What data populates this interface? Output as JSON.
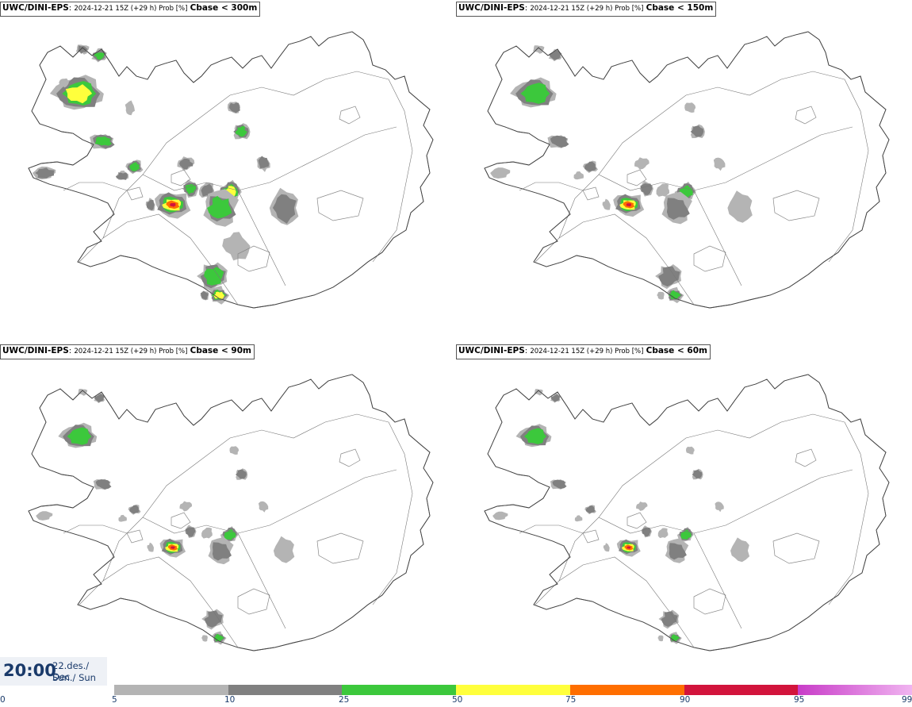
{
  "panels": [
    {
      "model": "UWC/DINI-EPS",
      "run": "2024-12-21 15Z (+29 h) Prob [%]",
      "threshold": "Cbase < 300m"
    },
    {
      "model": "UWC/DINI-EPS",
      "run": "2024-12-21 15Z (+29 h) Prob [%]",
      "threshold": "Cbase < 150m"
    },
    {
      "model": "UWC/DINI-EPS",
      "run": "2024-12-21 15Z (+29 h) Prob [%]",
      "threshold": "Cbase < 90m"
    },
    {
      "model": "UWC/DINI-EPS",
      "run": "2024-12-21 15Z (+29 h) Prob [%]",
      "threshold": "Cbase < 60m"
    }
  ],
  "valid_time": {
    "time": "20:00",
    "date": "22.des./ Dec",
    "day": "Sun./ Sun"
  },
  "legend": {
    "ticks": [
      "0",
      "5",
      "10",
      "25",
      "50",
      "75",
      "90",
      "95",
      "99"
    ],
    "colors": [
      "#b4b4b4",
      "#808080",
      "#3cc83c",
      "#ffff3c",
      "#ff6e00",
      "#d2143c",
      "#c83cc8",
      "#f0b4f0"
    ]
  }
}
